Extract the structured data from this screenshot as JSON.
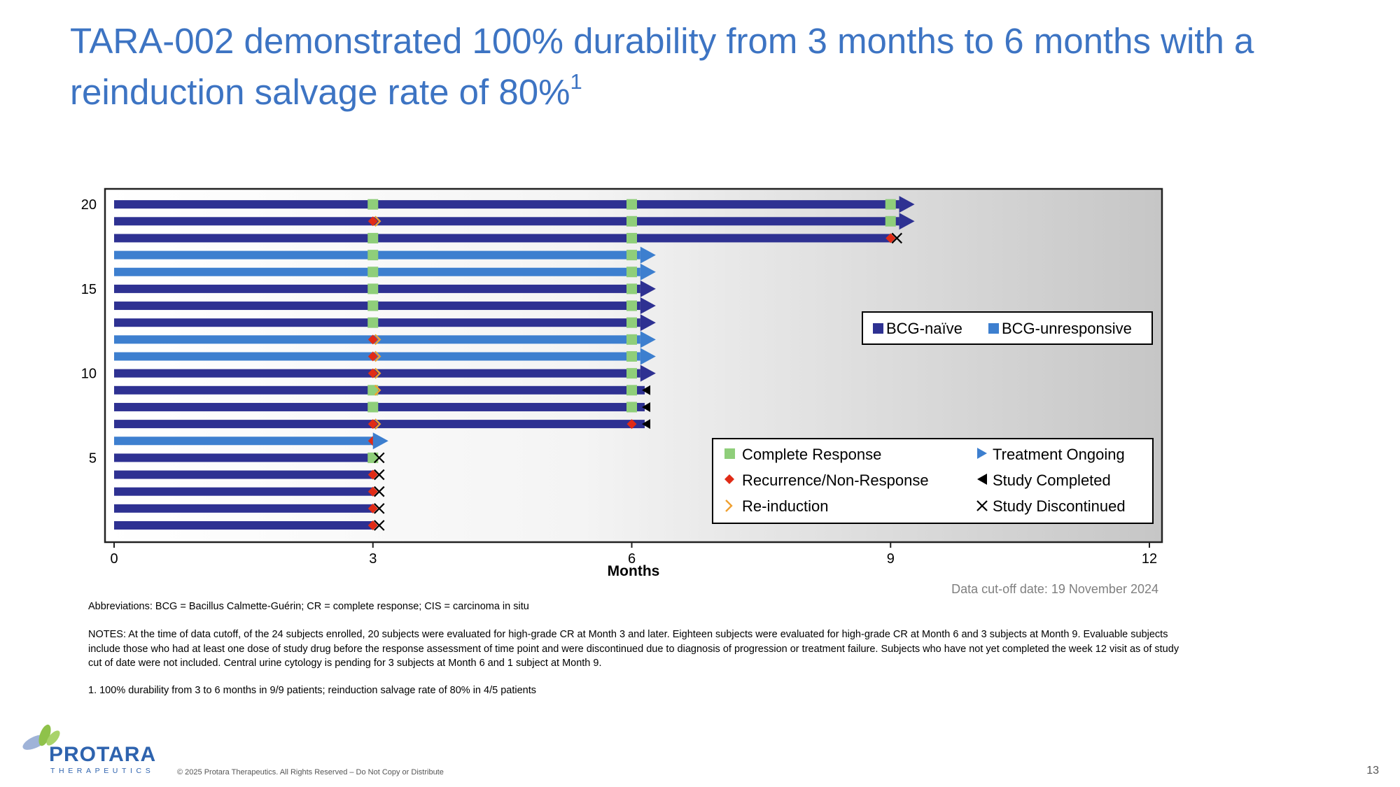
{
  "slide": {
    "title_main": "TARA-002 demonstrated 100% durability from 3 months to 6 months with a reinduction salvage rate of 80%",
    "title_sup": "1",
    "data_cutoff": "Data cut-off date: 19 November 2024",
    "abbreviations": "Abbreviations: BCG = Bacillus Calmette-Guérin; CR = complete response; CIS = carcinoma in situ",
    "notes": "NOTES:  At the time of data cutoff, of the 24 subjects enrolled, 20 subjects were evaluated for high-grade CR at Month 3 and later. Eighteen subjects were evaluated for high-grade CR at Month 6 and 3 subjects at Month 9.  Evaluable subjects include those who had at least one dose of study drug before the response assessment of time point and were discontinued due to diagnosis of progression or treatment failure. Subjects who have not yet completed the week 12 visit as of study cut of date were not included. Central urine cytology is pending for 3 subjects at Month 6 and 1 subject at Month 9.",
    "footnote": "1. 100% durability from 3 to 6 months in 9/9 patients; reinduction salvage rate of 80% in 4/5 patients",
    "logo_word": "PROTARA",
    "logo_sub": "THERAPEUTICS",
    "copyright": "© 2025 Protara Therapeutics. All Rights Reserved – Do Not Copy or Distribute",
    "page_number": "13"
  },
  "colors": {
    "title": "#3d74c3",
    "bcg_naive": "#2e3192",
    "bcg_unresponsive": "#3d7fcf",
    "complete_response": "#8fce7a",
    "recurrence": "#e02b16",
    "reinduction": "#f0a030",
    "study_marker": "#000000",
    "cutoff_text": "#7f7f7f"
  },
  "chart_data": {
    "type": "swimmer",
    "xlabel": "Months",
    "ylabel": "",
    "xlim": [
      0,
      12
    ],
    "ylim": [
      0,
      21
    ],
    "x_ticks": [
      "0",
      "3",
      "6",
      "9",
      "12"
    ],
    "y_ticks": [
      "5",
      "10",
      "15",
      "20"
    ],
    "group_legend": [
      {
        "key": "naive",
        "label": "BCG-naïve"
      },
      {
        "key": "unresponsive",
        "label": "BCG-unresponsive"
      }
    ],
    "event_legend": [
      {
        "key": "cr",
        "label": "Complete Response"
      },
      {
        "key": "ongoing",
        "label": "Treatment Ongoing"
      },
      {
        "key": "recurrence",
        "label": "Recurrence/Non-Response"
      },
      {
        "key": "completed",
        "label": "Study Completed"
      },
      {
        "key": "reinduction",
        "label": "Re-induction"
      },
      {
        "key": "discontinued",
        "label": "Study Discontinued"
      }
    ],
    "subjects": [
      {
        "id": 1,
        "group": "naive",
        "end": 3.0,
        "events": [
          {
            "t": 3,
            "type": "recurrence"
          }
        ],
        "outcome": "discontinued"
      },
      {
        "id": 2,
        "group": "naive",
        "end": 3.0,
        "events": [
          {
            "t": 3,
            "type": "recurrence"
          }
        ],
        "outcome": "discontinued"
      },
      {
        "id": 3,
        "group": "naive",
        "end": 3.0,
        "events": [
          {
            "t": 3,
            "type": "recurrence"
          }
        ],
        "outcome": "discontinued"
      },
      {
        "id": 4,
        "group": "naive",
        "end": 3.0,
        "events": [
          {
            "t": 3,
            "type": "recurrence"
          }
        ],
        "outcome": "discontinued"
      },
      {
        "id": 5,
        "group": "naive",
        "end": 3.0,
        "events": [
          {
            "t": 3,
            "type": "cr"
          }
        ],
        "outcome": "discontinued"
      },
      {
        "id": 6,
        "group": "unresponsive",
        "end": 3.0,
        "events": [
          {
            "t": 3,
            "type": "recurrence"
          },
          {
            "t": 3,
            "type": "reinduction"
          }
        ],
        "outcome": "ongoing"
      },
      {
        "id": 7,
        "group": "naive",
        "end": 6.15,
        "events": [
          {
            "t": 3,
            "type": "recurrence"
          },
          {
            "t": 3,
            "type": "reinduction"
          },
          {
            "t": 6,
            "type": "recurrence"
          }
        ],
        "outcome": "completed"
      },
      {
        "id": 8,
        "group": "naive",
        "end": 6.15,
        "events": [
          {
            "t": 3,
            "type": "cr"
          },
          {
            "t": 6,
            "type": "cr"
          }
        ],
        "outcome": "completed"
      },
      {
        "id": 9,
        "group": "naive",
        "end": 6.15,
        "events": [
          {
            "t": 3,
            "type": "cr"
          },
          {
            "t": 3,
            "type": "reinduction"
          },
          {
            "t": 6,
            "type": "cr"
          }
        ],
        "outcome": "completed"
      },
      {
        "id": 10,
        "group": "naive",
        "end": 6.1,
        "events": [
          {
            "t": 3,
            "type": "recurrence"
          },
          {
            "t": 3,
            "type": "reinduction"
          },
          {
            "t": 6,
            "type": "cr"
          }
        ],
        "outcome": "ongoing"
      },
      {
        "id": 11,
        "group": "unresponsive",
        "end": 6.1,
        "events": [
          {
            "t": 3,
            "type": "recurrence"
          },
          {
            "t": 3,
            "type": "reinduction"
          },
          {
            "t": 6,
            "type": "cr"
          }
        ],
        "outcome": "ongoing"
      },
      {
        "id": 12,
        "group": "unresponsive",
        "end": 6.1,
        "events": [
          {
            "t": 3,
            "type": "recurrence"
          },
          {
            "t": 3,
            "type": "reinduction"
          },
          {
            "t": 6,
            "type": "cr"
          }
        ],
        "outcome": "ongoing"
      },
      {
        "id": 13,
        "group": "naive",
        "end": 6.1,
        "events": [
          {
            "t": 3,
            "type": "cr"
          },
          {
            "t": 6,
            "type": "cr"
          }
        ],
        "outcome": "ongoing"
      },
      {
        "id": 14,
        "group": "naive",
        "end": 6.1,
        "events": [
          {
            "t": 3,
            "type": "cr"
          },
          {
            "t": 6,
            "type": "cr"
          }
        ],
        "outcome": "ongoing"
      },
      {
        "id": 15,
        "group": "naive",
        "end": 6.1,
        "events": [
          {
            "t": 3,
            "type": "cr"
          },
          {
            "t": 6,
            "type": "cr"
          }
        ],
        "outcome": "ongoing"
      },
      {
        "id": 16,
        "group": "unresponsive",
        "end": 6.1,
        "events": [
          {
            "t": 3,
            "type": "cr"
          },
          {
            "t": 6,
            "type": "cr"
          }
        ],
        "outcome": "ongoing"
      },
      {
        "id": 17,
        "group": "unresponsive",
        "end": 6.1,
        "events": [
          {
            "t": 3,
            "type": "cr"
          },
          {
            "t": 6,
            "type": "cr"
          }
        ],
        "outcome": "ongoing"
      },
      {
        "id": 18,
        "group": "naive",
        "end": 9.0,
        "events": [
          {
            "t": 3,
            "type": "cr"
          },
          {
            "t": 6,
            "type": "cr"
          },
          {
            "t": 9,
            "type": "recurrence"
          }
        ],
        "outcome": "discontinued"
      },
      {
        "id": 19,
        "group": "naive",
        "end": 9.1,
        "events": [
          {
            "t": 3,
            "type": "recurrence"
          },
          {
            "t": 3,
            "type": "reinduction"
          },
          {
            "t": 6,
            "type": "cr"
          },
          {
            "t": 9,
            "type": "cr"
          }
        ],
        "outcome": "ongoing"
      },
      {
        "id": 20,
        "group": "naive",
        "end": 9.1,
        "events": [
          {
            "t": 3,
            "type": "cr"
          },
          {
            "t": 6,
            "type": "cr"
          },
          {
            "t": 9,
            "type": "cr"
          }
        ],
        "outcome": "ongoing"
      }
    ]
  }
}
